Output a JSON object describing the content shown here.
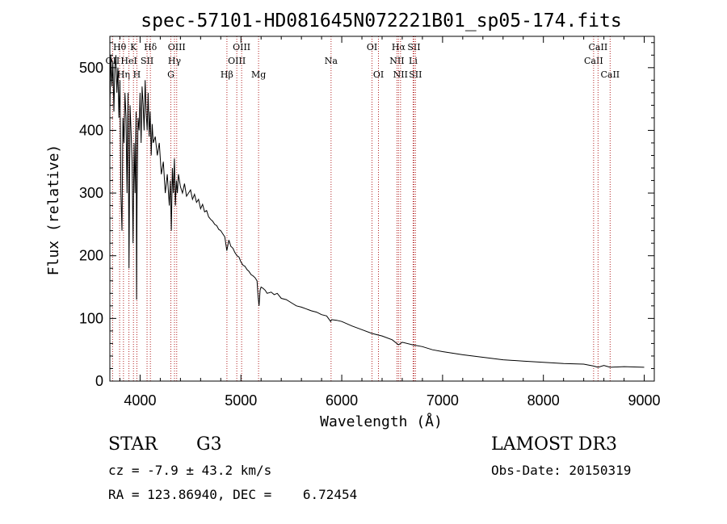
{
  "chart_data": {
    "type": "line",
    "title": "spec-57101-HD081645N072221B01_sp05-174.fits",
    "xlabel": "Wavelength (Å)",
    "ylabel": "Flux (relative)",
    "xlim": [
      3700,
      9100
    ],
    "ylim": [
      0,
      550
    ],
    "xticks": [
      4000,
      5000,
      6000,
      7000,
      8000,
      9000
    ],
    "yticks": [
      0,
      100,
      200,
      300,
      400,
      500
    ],
    "grid": false,
    "line_color": "#000000",
    "marker_color": "#b22222",
    "series": [
      {
        "name": "flux",
        "points": [
          [
            3700,
            430
          ],
          [
            3710,
            520
          ],
          [
            3720,
            470
          ],
          [
            3730,
            510
          ],
          [
            3740,
            430
          ],
          [
            3750,
            500
          ],
          [
            3760,
            520
          ],
          [
            3770,
            460
          ],
          [
            3780,
            500
          ],
          [
            3790,
            420
          ],
          [
            3800,
            480
          ],
          [
            3810,
            300
          ],
          [
            3820,
            240
          ],
          [
            3830,
            420
          ],
          [
            3840,
            380
          ],
          [
            3850,
            460
          ],
          [
            3860,
            420
          ],
          [
            3870,
            300
          ],
          [
            3880,
            460
          ],
          [
            3890,
            180
          ],
          [
            3900,
            440
          ],
          [
            3910,
            400
          ],
          [
            3920,
            350
          ],
          [
            3930,
            220
          ],
          [
            3940,
            380
          ],
          [
            3950,
            300
          ],
          [
            3960,
            430
          ],
          [
            3965,
            130
          ],
          [
            3970,
            300
          ],
          [
            3980,
            420
          ],
          [
            3990,
            400
          ],
          [
            4000,
            460
          ],
          [
            4010,
            380
          ],
          [
            4020,
            470
          ],
          [
            4030,
            440
          ],
          [
            4040,
            400
          ],
          [
            4050,
            480
          ],
          [
            4060,
            430
          ],
          [
            4070,
            400
          ],
          [
            4080,
            460
          ],
          [
            4090,
            390
          ],
          [
            4100,
            430
          ],
          [
            4110,
            360
          ],
          [
            4120,
            410
          ],
          [
            4130,
            380
          ],
          [
            4150,
            390
          ],
          [
            4170,
            360
          ],
          [
            4190,
            380
          ],
          [
            4210,
            330
          ],
          [
            4230,
            350
          ],
          [
            4250,
            300
          ],
          [
            4270,
            330
          ],
          [
            4290,
            280
          ],
          [
            4300,
            320
          ],
          [
            4310,
            240
          ],
          [
            4320,
            340
          ],
          [
            4330,
            300
          ],
          [
            4340,
            355
          ],
          [
            4350,
            280
          ],
          [
            4360,
            320
          ],
          [
            4370,
            300
          ],
          [
            4380,
            330
          ],
          [
            4400,
            310
          ],
          [
            4420,
            300
          ],
          [
            4440,
            315
          ],
          [
            4460,
            295
          ],
          [
            4480,
            300
          ],
          [
            4500,
            305
          ],
          [
            4520,
            290
          ],
          [
            4540,
            298
          ],
          [
            4560,
            285
          ],
          [
            4580,
            290
          ],
          [
            4600,
            275
          ],
          [
            4620,
            282
          ],
          [
            4640,
            270
          ],
          [
            4660,
            272
          ],
          [
            4680,
            262
          ],
          [
            4700,
            258
          ],
          [
            4720,
            255
          ],
          [
            4740,
            250
          ],
          [
            4760,
            248
          ],
          [
            4780,
            242
          ],
          [
            4800,
            240
          ],
          [
            4820,
            235
          ],
          [
            4840,
            230
          ],
          [
            4860,
            208
          ],
          [
            4880,
            225
          ],
          [
            4900,
            215
          ],
          [
            4920,
            212
          ],
          [
            4940,
            205
          ],
          [
            4960,
            200
          ],
          [
            4980,
            198
          ],
          [
            5000,
            190
          ],
          [
            5020,
            185
          ],
          [
            5040,
            183
          ],
          [
            5060,
            178
          ],
          [
            5080,
            175
          ],
          [
            5100,
            170
          ],
          [
            5120,
            168
          ],
          [
            5140,
            165
          ],
          [
            5160,
            160
          ],
          [
            5170,
            135
          ],
          [
            5180,
            120
          ],
          [
            5190,
            145
          ],
          [
            5200,
            150
          ],
          [
            5220,
            148
          ],
          [
            5240,
            145
          ],
          [
            5260,
            140
          ],
          [
            5300,
            142
          ],
          [
            5330,
            138
          ],
          [
            5360,
            140
          ],
          [
            5400,
            132
          ],
          [
            5450,
            130
          ],
          [
            5500,
            125
          ],
          [
            5550,
            120
          ],
          [
            5600,
            118
          ],
          [
            5650,
            115
          ],
          [
            5700,
            112
          ],
          [
            5750,
            110
          ],
          [
            5800,
            106
          ],
          [
            5850,
            104
          ],
          [
            5890,
            95
          ],
          [
            5900,
            98
          ],
          [
            5950,
            97
          ],
          [
            6000,
            95
          ],
          [
            6100,
            88
          ],
          [
            6200,
            82
          ],
          [
            6300,
            76
          ],
          [
            6400,
            72
          ],
          [
            6500,
            66
          ],
          [
            6563,
            58
          ],
          [
            6600,
            62
          ],
          [
            6700,
            58
          ],
          [
            6800,
            55
          ],
          [
            6900,
            50
          ],
          [
            7000,
            47
          ],
          [
            7200,
            42
          ],
          [
            7400,
            38
          ],
          [
            7600,
            34
          ],
          [
            7800,
            32
          ],
          [
            8000,
            30
          ],
          [
            8200,
            28
          ],
          [
            8400,
            27
          ],
          [
            8498,
            24
          ],
          [
            8542,
            22
          ],
          [
            8600,
            25
          ],
          [
            8662,
            22
          ],
          [
            8800,
            23
          ],
          [
            9000,
            22
          ]
        ]
      }
    ],
    "line_markers": [
      {
        "label": "OII",
        "wave": 3727,
        "row": 2
      },
      {
        "label": "Hθ",
        "wave": 3797,
        "row": 1
      },
      {
        "label": "Hη",
        "wave": 3835,
        "row": 3
      },
      {
        "label": "HeI",
        "wave": 3889,
        "row": 2
      },
      {
        "label": "K",
        "wave": 3934,
        "row": 1
      },
      {
        "label": "H",
        "wave": 3968,
        "row": 3
      },
      {
        "label": "SII",
        "wave": 4069,
        "row": 2
      },
      {
        "label": "Hδ",
        "wave": 4102,
        "row": 1
      },
      {
        "label": "G",
        "wave": 4305,
        "row": 3
      },
      {
        "label": "Hγ",
        "wave": 4341,
        "row": 2
      },
      {
        "label": "OIII",
        "wave": 4363,
        "row": 1
      },
      {
        "label": "Hβ",
        "wave": 4861,
        "row": 3
      },
      {
        "label": "OIII",
        "wave": 4959,
        "row": 2
      },
      {
        "label": "OIII",
        "wave": 5007,
        "row": 1
      },
      {
        "label": "Mg",
        "wave": 5175,
        "row": 3
      },
      {
        "label": "Na",
        "wave": 5894,
        "row": 2
      },
      {
        "label": "OI",
        "wave": 6300,
        "row": 1
      },
      {
        "label": "OI",
        "wave": 6364,
        "row": 3
      },
      {
        "label": "NII",
        "wave": 6548,
        "row": 2
      },
      {
        "label": "Hα",
        "wave": 6563,
        "row": 1
      },
      {
        "label": "NII",
        "wave": 6583,
        "row": 3
      },
      {
        "label": "Li",
        "wave": 6708,
        "row": 2
      },
      {
        "label": "SII",
        "wave": 6716,
        "row": 1
      },
      {
        "label": "SII",
        "wave": 6731,
        "row": 3
      },
      {
        "label": "CaII",
        "wave": 8498,
        "row": 2
      },
      {
        "label": "CaII",
        "wave": 8542,
        "row": 1
      },
      {
        "label": "CaII",
        "wave": 8662,
        "row": 3
      }
    ]
  },
  "info": {
    "class_type": "STAR",
    "subclass": "G3",
    "cz": "cz = -7.9 ± 43.2 km/s",
    "coords": "RA = 123.86940, DEC =    6.72454",
    "survey": "LAMOST DR3",
    "obs_date": "Obs-Date: 20150319"
  }
}
